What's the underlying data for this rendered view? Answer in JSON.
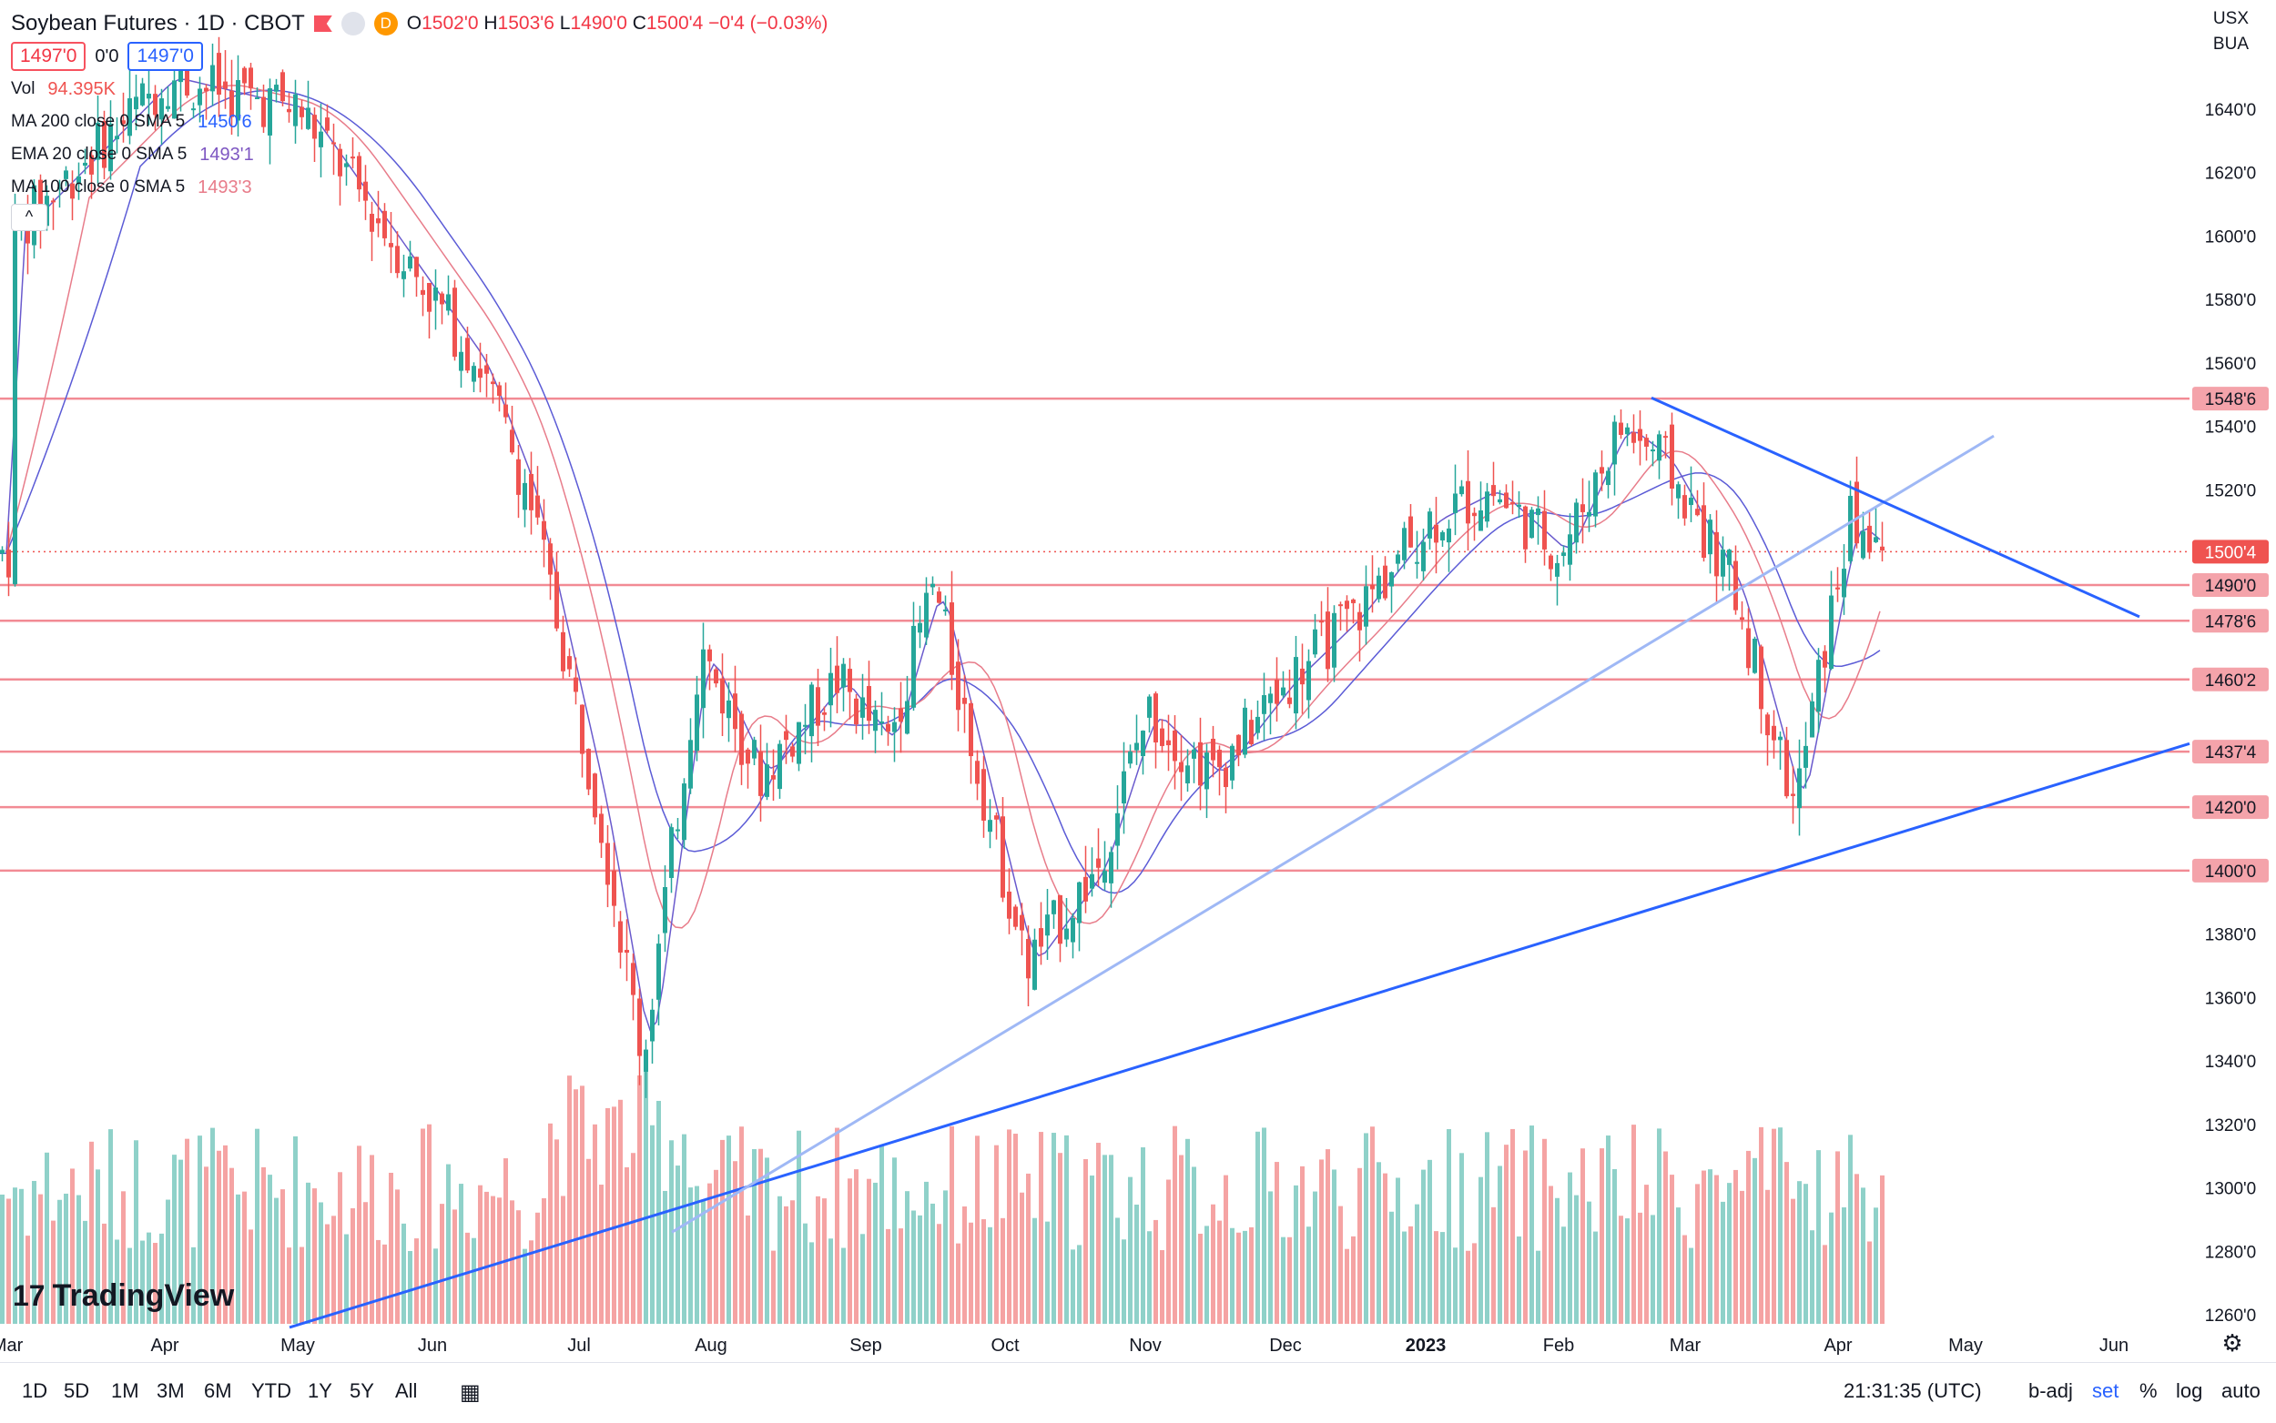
{
  "header": {
    "title": "Soybean Futures · 1D · CBOT",
    "open_label": "O",
    "open": "1502'0",
    "high_label": "H",
    "high": "1503'6",
    "low_label": "L",
    "low": "1490'0",
    "close_label": "C",
    "close": "1500'4",
    "change": "−0'4 (−0.03%)",
    "badge_d": "D",
    "sell_price": "1497'0",
    "spread": "0'0",
    "buy_price": "1497'0"
  },
  "indicators": {
    "vol_label": "Vol",
    "vol_value": "94.395K",
    "ma200_label": "MA 200 close 0 SMA 5",
    "ma200_value": "1450'6",
    "ema20_label": "EMA 20 close 0 SMA 5",
    "ema20_value": "1493'1",
    "ma100_label": "MA 100 close 0 SMA 5",
    "ma100_value": "1493'3",
    "collapse_icon": "^"
  },
  "currency": {
    "unit": "USX",
    "exchange": "BUA"
  },
  "colors": {
    "up": "#26a69a",
    "down": "#ef5350",
    "level": "#f28b94",
    "trend": "#2962ff",
    "trend_light": "#9fb8f5",
    "ma200": "#5b5bd6",
    "ma100": "#e87c8a",
    "ema20": "#6a5acd"
  },
  "chart_data": {
    "type": "candlestick",
    "title": "Soybean Futures · 1D · CBOT",
    "x_axis_labels": [
      "Mar",
      "Apr",
      "May",
      "Jun",
      "Jul",
      "Aug",
      "Sep",
      "Oct",
      "Nov",
      "Dec",
      "2023",
      "Feb",
      "Mar",
      "Apr",
      "May",
      "Jun"
    ],
    "y_ticks": [
      "1640'0",
      "1620'0",
      "1600'0",
      "1580'0",
      "1560'0",
      "1540'0",
      "1520'0",
      "1380'0",
      "1360'0",
      "1340'0",
      "1320'0",
      "1300'0",
      "1280'0",
      "1260'0"
    ],
    "ylim": [
      1256,
      1664
    ],
    "horizontal_levels": [
      {
        "label": "1548'6",
        "value": 1548.75
      },
      {
        "label": "1490'0",
        "value": 1490
      },
      {
        "label": "1478'6",
        "value": 1478.75
      },
      {
        "label": "1460'2",
        "value": 1460.25
      },
      {
        "label": "1437'4",
        "value": 1437.5
      },
      {
        "label": "1420'0",
        "value": 1420
      },
      {
        "label": "1400'0",
        "value": 1400
      }
    ],
    "last_price": {
      "label": "1500'4",
      "value": 1500.5
    },
    "approx_series_description": "Daily soybean futures candles Mar 2022 – Apr 2023 with volume bars",
    "approx_close_points": [
      [
        "2022-03",
        1600
      ],
      [
        "2022-04",
        1650
      ],
      [
        "2022-05",
        1640
      ],
      [
        "2022-06-10",
        1560
      ],
      [
        "2022-06-20",
        1520
      ],
      [
        "2022-07-05",
        1420
      ],
      [
        "2022-07-15",
        1340
      ],
      [
        "2022-07-28",
        1470
      ],
      [
        "2022-08-10",
        1430
      ],
      [
        "2022-08-25",
        1460
      ],
      [
        "2022-09-05",
        1440
      ],
      [
        "2022-09-15",
        1490
      ],
      [
        "2022-09-25",
        1430
      ],
      [
        "2022-10-05",
        1370
      ],
      [
        "2022-10-20",
        1400
      ],
      [
        "2022-11-01",
        1450
      ],
      [
        "2022-11-15",
        1430
      ],
      [
        "2022-12-01",
        1460
      ],
      [
        "2022-12-15",
        1480
      ],
      [
        "2023-01-01",
        1510
      ],
      [
        "2023-01-15",
        1520
      ],
      [
        "2023-02-01",
        1500
      ],
      [
        "2023-02-15",
        1540
      ],
      [
        "2023-02-25",
        1530
      ],
      [
        "2023-03-10",
        1490
      ],
      [
        "2023-03-22",
        1420
      ],
      [
        "2023-04-03",
        1510
      ],
      [
        "2023-04-12",
        1500
      ]
    ]
  },
  "bottom_bar": {
    "ranges": [
      "1D",
      "5D",
      "1M",
      "3M",
      "6M",
      "YTD",
      "1Y",
      "5Y",
      "All"
    ],
    "time": "21:31:35 (UTC)",
    "b_adj": "b-adj",
    "set": "set",
    "percent": "%",
    "log": "log",
    "auto": "auto"
  },
  "logo": {
    "text": "TradingView",
    "mark": "17"
  }
}
